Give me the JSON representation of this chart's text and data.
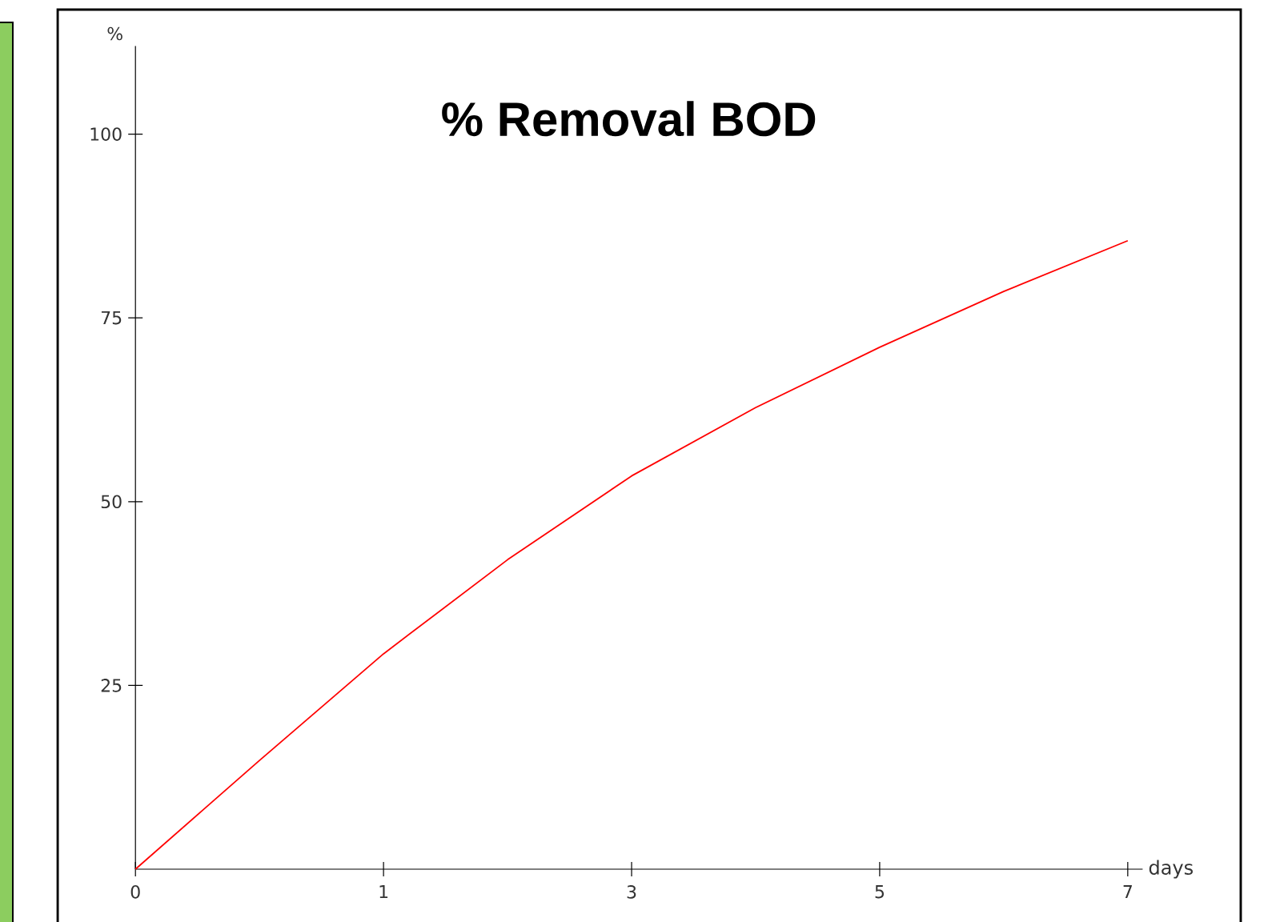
{
  "chart_data": {
    "type": "line",
    "title": "% Removal BOD",
    "xlabel": "days",
    "ylabel": "%",
    "categories": [
      "0",
      null,
      "1",
      null,
      "3",
      null,
      "5",
      null,
      "7"
    ],
    "series": [
      {
        "color": "#ff0000",
        "values": [
          0,
          14.8,
          29.3,
          42.1,
          53.5,
          62.8,
          71.0,
          78.6,
          85.5
        ]
      }
    ],
    "ylim": [
      0,
      112
    ],
    "yticks": [
      25,
      50,
      75,
      100
    ],
    "grid": false,
    "marker": "none",
    "line_style": "solid"
  }
}
